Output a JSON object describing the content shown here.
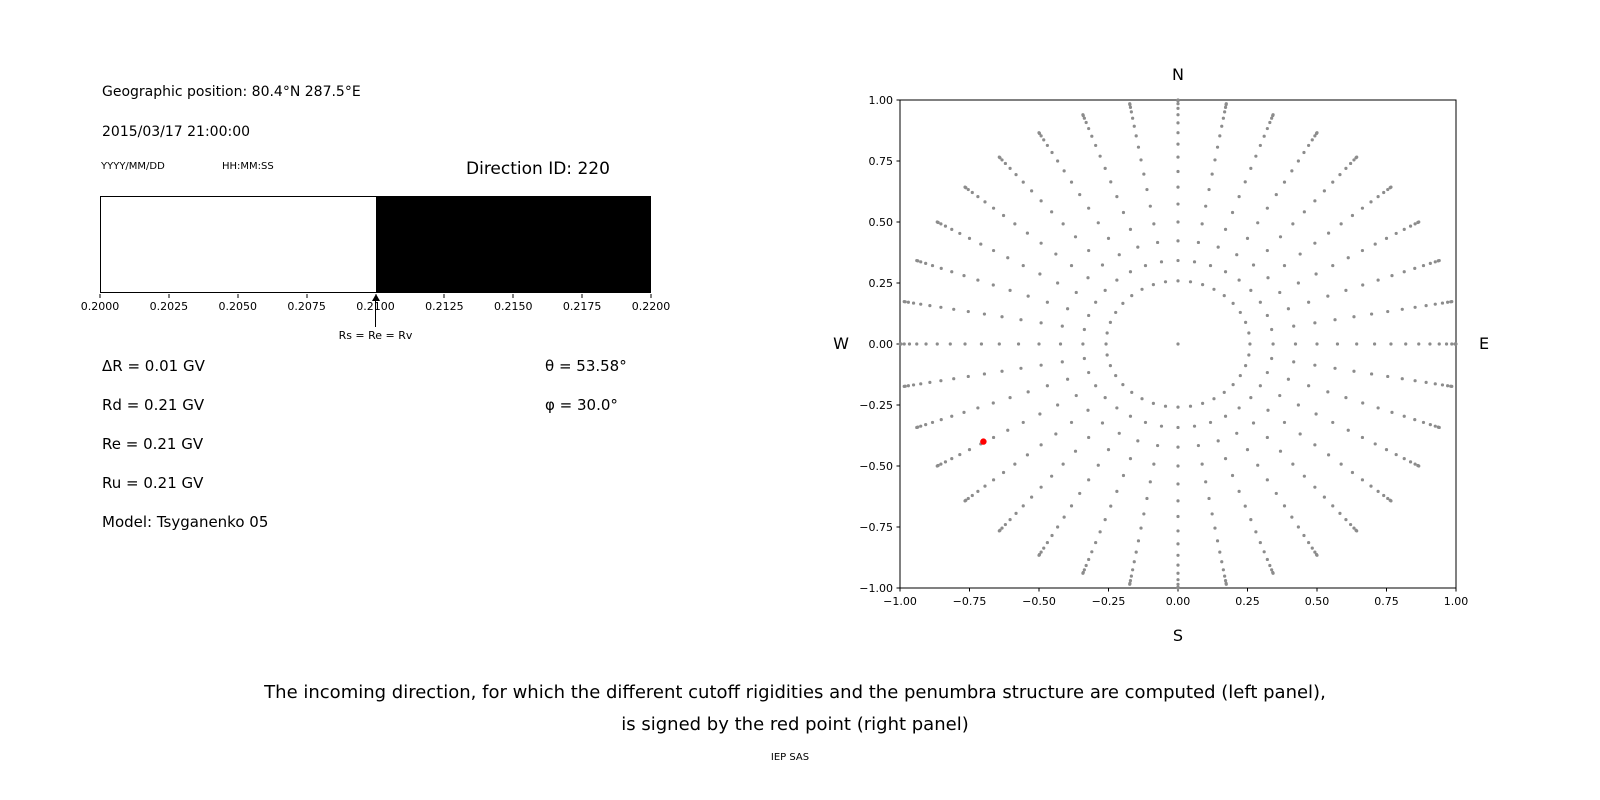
{
  "info_panel": {
    "geo_position": "Geographic position: 80.4°N 287.5°E",
    "datetime": "2015/03/17 21:00:00",
    "date_format_label": "YYYY/MM/DD",
    "time_format_label": "HH:MM:SS",
    "direction_id": "Direction ID: 220",
    "delta_r": "ΔR = 0.01 GV",
    "rd": "Rd = 0.21 GV",
    "re": "Re = 0.21 GV",
    "ru": "Ru = 0.21 GV",
    "model": "Model: Tsyganenko 05",
    "theta": "θ = 53.58°",
    "phi": "φ = 30.0°"
  },
  "caption": {
    "line1": "The incoming direction, for which the different cutoff rigidities and the penumbra structure are computed (left panel),",
    "line2": "is signed by the red point (right panel)",
    "credit": "IEP SAS"
  },
  "chart_data": [
    {
      "id": "penumbra",
      "type": "bar",
      "title": "",
      "xlim": [
        0.2,
        0.22
      ],
      "x_ticks": [
        0.2,
        0.2025,
        0.205,
        0.2075,
        0.21,
        0.2125,
        0.215,
        0.2175,
        0.22
      ],
      "x_tick_labels": [
        "0.2000",
        "0.2025",
        "0.2050",
        "0.2075",
        "0.2100",
        "0.2125",
        "0.2150",
        "0.2175",
        "0.2200"
      ],
      "bands": [
        {
          "from": 0.2,
          "to": 0.21,
          "color": "#ffffff"
        },
        {
          "from": 0.21,
          "to": 0.22,
          "color": "#000000"
        }
      ],
      "annotation": {
        "x": 0.21,
        "label": "Rs = Re = Rv"
      }
    },
    {
      "id": "direction-map",
      "type": "scatter",
      "title": "",
      "grid": false,
      "xlim": [
        -1.0,
        1.0
      ],
      "ylim": [
        -1.0,
        1.0
      ],
      "x_ticks": [
        -1.0,
        -0.75,
        -0.5,
        -0.25,
        0.0,
        0.25,
        0.5,
        0.75,
        1.0
      ],
      "x_tick_labels": [
        "−1.00",
        "−0.75",
        "−0.50",
        "−0.25",
        "0.00",
        "0.25",
        "0.50",
        "0.75",
        "1.00"
      ],
      "y_ticks": [
        -1.0,
        -0.75,
        -0.5,
        -0.25,
        0.0,
        0.25,
        0.5,
        0.75,
        1.0
      ],
      "y_tick_labels": [
        "−1.00",
        "−0.75",
        "−0.50",
        "−0.25",
        "0.00",
        "0.25",
        "0.50",
        "0.75",
        "1.00"
      ],
      "compass": {
        "top": "N",
        "bottom": "S",
        "left": "W",
        "right": "E"
      },
      "grid_points": {
        "name": "direction-grid",
        "color": "#8c8c8c",
        "marker_radius_px": 1.6,
        "azimuth_start_deg": 0,
        "azimuth_step_deg": 10,
        "azimuth_count": 36,
        "zenith_deg": [
          0,
          15,
          20,
          25,
          30,
          35,
          40,
          45,
          50,
          55,
          60,
          65,
          70,
          75,
          80,
          85,
          90
        ],
        "radius_rule": "sin(zenith)"
      },
      "highlight_point": {
        "name": "incoming-direction",
        "color": "#ff0000",
        "x": -0.7,
        "y": -0.4,
        "marker_radius_px": 3.2
      }
    }
  ]
}
